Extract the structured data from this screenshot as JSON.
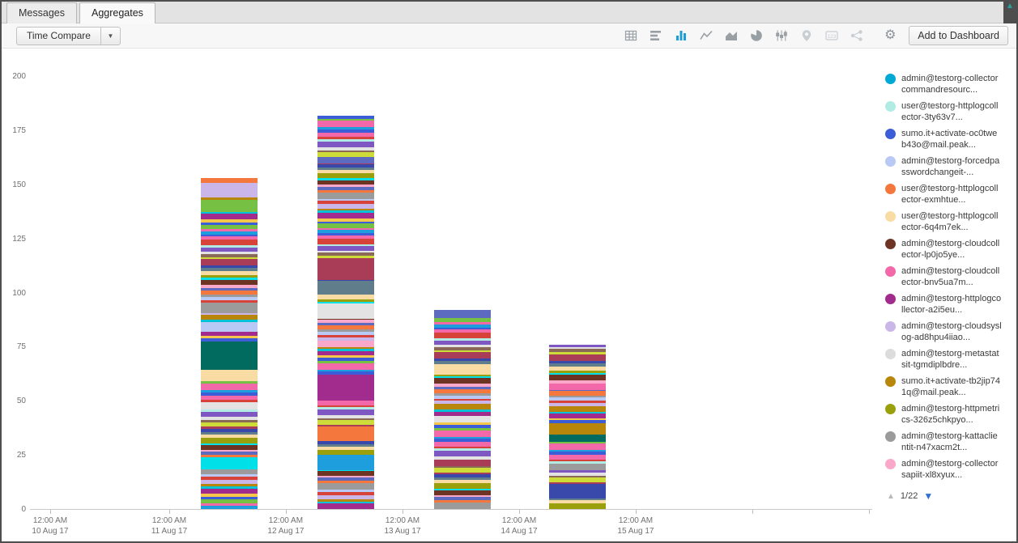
{
  "tabs": [
    {
      "label": "Messages",
      "active": false
    },
    {
      "label": "Aggregates",
      "active": true
    }
  ],
  "toolbar": {
    "time_compare_label": "Time Compare",
    "dropdown_arrow": "▼",
    "add_to_dashboard_label": "Add to Dashboard",
    "active_icon_color": "#1b9fd8",
    "icons": [
      {
        "name": "table",
        "active": false,
        "disabled": false
      },
      {
        "name": "bar-chart",
        "active": false,
        "disabled": false
      },
      {
        "name": "column-chart",
        "active": true,
        "disabled": false
      },
      {
        "name": "line-chart",
        "active": false,
        "disabled": false
      },
      {
        "name": "area-chart",
        "active": false,
        "disabled": false
      },
      {
        "name": "pie-chart",
        "active": false,
        "disabled": false
      },
      {
        "name": "box-plot",
        "active": false,
        "disabled": false
      },
      {
        "name": "map",
        "active": false,
        "disabled": true
      },
      {
        "name": "single-value",
        "active": false,
        "disabled": true
      },
      {
        "name": "node-diagram",
        "active": false,
        "disabled": true
      },
      {
        "name": "settings",
        "active": false,
        "disabled": false
      }
    ]
  },
  "window": {
    "scroll_up_arrow": "▲"
  },
  "chart_data": {
    "type": "stacked-bar",
    "title": "",
    "xlabel": "",
    "ylabel": "",
    "ylim": [
      0,
      200
    ],
    "yticks": [
      0,
      25,
      50,
      75,
      100,
      125,
      150,
      175,
      200
    ],
    "grid": false,
    "legend_position": "right",
    "xticks": [
      {
        "time": "12:00 AM",
        "date": "10 Aug 17",
        "f": 0.024
      },
      {
        "time": "12:00 AM",
        "date": "11 Aug 17",
        "f": 0.1654
      },
      {
        "time": "12:00 AM",
        "date": "12 Aug 17",
        "f": 0.3038
      },
      {
        "time": "12:00 AM",
        "date": "13 Aug 17",
        "f": 0.4423
      },
      {
        "time": "12:00 AM",
        "date": "14 Aug 17",
        "f": 0.5808
      },
      {
        "time": "12:00 AM",
        "date": "15 Aug 17",
        "f": 0.7192
      },
      {
        "time": "",
        "date": "",
        "f": 0.8577
      },
      {
        "time": "",
        "date": "",
        "f": 0.996
      }
    ],
    "bars": [
      {
        "date": "11 Aug 17",
        "center_f": 0.2365,
        "total": 153,
        "stripe_offset": 0,
        "features": [
          {
            "at": 18.5,
            "v": 5.5,
            "c": 18
          },
          {
            "at": 46,
            "v": 3.5,
            "c": 10
          },
          {
            "at": 59,
            "v": 5.5,
            "c": 5
          },
          {
            "at": 64.5,
            "v": 13,
            "c": 15
          },
          {
            "at": 82,
            "v": 4.5,
            "c": 3
          },
          {
            "at": 90.5,
            "v": 5,
            "c": 13
          },
          {
            "at": 137.5,
            "v": 5.5,
            "c": 16
          },
          {
            "at": 144,
            "v": 6,
            "c": 9
          },
          {
            "at": 151,
            "v": 2,
            "c": 4
          }
        ]
      },
      {
        "date": "12 Aug 17",
        "center_f": 0.375,
        "total": 182,
        "stripe_offset": 5,
        "features": [
          {
            "at": 18,
            "v": 7,
            "c": 0
          },
          {
            "at": 31.5,
            "v": 6.5,
            "c": 4
          },
          {
            "at": 50,
            "v": 12,
            "c": 8
          },
          {
            "at": 75,
            "v": 3,
            "c": 14
          },
          {
            "at": 88,
            "v": 7,
            "c": 10
          },
          {
            "at": 99,
            "v": 5,
            "c": 25
          },
          {
            "at": 106,
            "v": 7,
            "c": 22
          },
          {
            "at": 160,
            "v": 3,
            "c": 21
          }
        ]
      },
      {
        "date": "13 Aug 17",
        "center_f": 0.5135,
        "total": 92,
        "stripe_offset": 11,
        "features": [
          {
            "at": 20,
            "v": 3,
            "c": 22
          },
          {
            "at": 40,
            "v": 3,
            "c": 10
          },
          {
            "at": 62,
            "v": 3,
            "c": 5
          },
          {
            "at": 88.5,
            "v": 3.5,
            "c": 21
          }
        ]
      },
      {
        "date": "14 Aug 17",
        "center_f": 0.65,
        "total": 76,
        "stripe_offset": 17,
        "features": [
          {
            "at": 6.5,
            "v": 5,
            "c": 23
          },
          {
            "at": 18,
            "v": 3,
            "c": 13
          },
          {
            "at": 31,
            "v": 3.5,
            "c": 15
          },
          {
            "at": 34.5,
            "v": 5,
            "c": 11
          },
          {
            "at": 55,
            "v": 3,
            "c": 7
          }
        ]
      }
    ],
    "palette": [
      "#1f9ede",
      "#00c3d7",
      "#3b5dd8",
      "#b9c9f5",
      "#f4773e",
      "#f8dca4",
      "#6e3423",
      "#f268a8",
      "#a12c8e",
      "#cbb6ea",
      "#e3e3e3",
      "#b8860b",
      "#9aa00b",
      "#9b9b9b",
      "#f9a8c9",
      "#006b5e",
      "#76c043",
      "#d84339",
      "#00e0e8",
      "#f5c84c",
      "#8a6a56",
      "#5c6bc0",
      "#a93d57",
      "#3949ab",
      "#b2ebe4",
      "#607d8b",
      "#cddc39",
      "#7e57c2"
    ],
    "stripe_colors": [
      0,
      7,
      16,
      2,
      19,
      8,
      1,
      11,
      9,
      17,
      3,
      13,
      4,
      21,
      14,
      6,
      18,
      12,
      5,
      25,
      23,
      22,
      26,
      20,
      10,
      27,
      24,
      17,
      7,
      2
    ],
    "stripe_heights": [
      1.5,
      1,
      2,
      1,
      1.5,
      2.5,
      1,
      1,
      2,
      1.5,
      1,
      3,
      1,
      1.5,
      1,
      2,
      1,
      2.5,
      1.5,
      1
    ]
  },
  "legend": {
    "items": [
      {
        "label": "admin@testorg-collectorcommandresourc...",
        "color": "#00a9d4"
      },
      {
        "label": "user@testorg-httplogcollector-3ty63v7...",
        "color": "#b2ebe4"
      },
      {
        "label": "sumo.it+activate-oc0tweb43o@mail.peak...",
        "color": "#3b5dd8"
      },
      {
        "label": "admin@testorg-forcedpasswordchangeit-...",
        "color": "#b9c9f5"
      },
      {
        "label": "user@testorg-httplogcollector-exmhtue...",
        "color": "#f4773e"
      },
      {
        "label": "user@testorg-httplogcollector-6q4m7ek...",
        "color": "#f8dca4"
      },
      {
        "label": "admin@testorg-cloudcollector-lp0jo5ye...",
        "color": "#6e3423"
      },
      {
        "label": "admin@testorg-cloudcollector-bnv5ua7m...",
        "color": "#f268a8"
      },
      {
        "label": "admin@testorg-httplogcollector-a2i5eu...",
        "color": "#a12c8e"
      },
      {
        "label": "admin@testorg-cloudsyslog-ad8hpu4iiao...",
        "color": "#cbb6ea"
      },
      {
        "label": "admin@testorg-metastatsit-tgmdiplbdre...",
        "color": "#dcdcdc"
      },
      {
        "label": "sumo.it+activate-tb2jip741q@mail.peak...",
        "color": "#b8860b"
      },
      {
        "label": "admin@testorg-httpmetrics-326z5chkpyo...",
        "color": "#9aa00b"
      },
      {
        "label": "admin@testorg-kattaclientit-n47xacm2t...",
        "color": "#9b9b9b"
      },
      {
        "label": "admin@testorg-collectorsapiit-xl8xyux...",
        "color": "#f9a8c9"
      }
    ],
    "pager": {
      "value": "1/22",
      "up_arrow": "▲",
      "down_arrow": "▼"
    }
  }
}
